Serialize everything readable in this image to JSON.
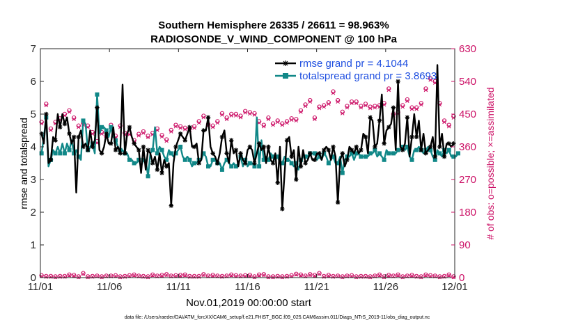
{
  "chart_data": {
    "type": "line",
    "title_line1": "Southern Hemisphere 26335 / 26611 = 98.963%",
    "title_line2": "RADIOSONDE_V_WIND_COMPONENT @ 100 hPa",
    "xlabel": "Nov.01,2019 00:00:00 start",
    "ylabel_left": "rmse and totalspread",
    "ylabel_right": "# of obs: o=possible; ×=assimilated",
    "footer": "data file: /Users/raeder/DAI/ATM_forcXX/CAM6_setup/f.e21.FHIST_BGC.f09_025.CAM6assim.011/Diags_NTrS_2019-11/obs_diag_output.nc",
    "xlim": [
      0,
      30
    ],
    "ylim_left": [
      0,
      7
    ],
    "ylim_right": [
      0,
      630
    ],
    "x_tick_values": [
      0,
      5,
      10,
      15,
      20,
      25,
      30
    ],
    "x_tick_labels": [
      "11/01",
      "11/06",
      "11/11",
      "11/16",
      "11/21",
      "11/26",
      "12/01"
    ],
    "y_left_ticks": [
      "0",
      "1",
      "2",
      "3",
      "4",
      "5",
      "6",
      "7"
    ],
    "y_right_ticks": [
      "0",
      "90",
      "180",
      "270",
      "360",
      "450",
      "540",
      "630"
    ],
    "legend": [
      {
        "name": "rmse grand pr = 4.1044",
        "color": "#000000"
      },
      {
        "name": "totalspread grand pr = 3.8693",
        "color": "#118888"
      }
    ],
    "colors": {
      "rmse": "#000000",
      "spread": "#118888",
      "obs": "#cc1166",
      "legend_text": "#1f4fe0"
    },
    "series": [
      {
        "name": "rmse",
        "values": [
          4.4,
          4.1,
          5.0,
          3.5,
          3.6,
          4.3,
          4.2,
          5.0,
          4.6,
          5.0,
          4.7,
          4.9,
          4.4,
          4.1,
          4.3,
          2.6,
          4.3,
          4.5,
          4.0,
          4.1,
          3.9,
          4.5,
          4.0,
          4.2,
          5.2,
          3.9,
          3.8,
          4.0,
          4.4,
          4.1,
          4.1,
          4.6,
          3.9,
          4.0,
          3.8,
          5.9,
          3.8,
          4.4,
          4.6,
          4.3,
          4.1,
          4.0,
          3.9,
          3.2,
          4.0,
          3.3,
          3.9,
          3.8,
          3.5,
          3.7,
          3.3,
          3.8,
          3.2,
          3.6,
          3.4,
          3.5,
          2.2,
          3.5,
          4.0,
          4.2,
          4.4,
          4.3,
          4.2,
          4.4,
          4.6,
          4.0,
          4.0,
          4.1,
          3.5,
          3.6,
          4.5,
          4.5,
          4.9,
          4.0,
          3.8,
          3.7,
          3.5,
          3.8,
          4.3,
          4.5,
          3.8,
          3.5,
          4.2,
          3.8,
          3.9,
          3.4,
          3.8,
          3.6,
          3.5,
          3.9,
          4.0,
          3.9,
          3.5,
          3.8,
          4.1,
          3.9,
          4.0,
          3.5,
          4.0,
          3.6,
          3.5,
          3.8,
          2.9,
          4.0,
          2.1,
          3.2,
          4.2,
          4.3,
          3.7,
          3.9,
          3.0,
          4.0,
          3.4,
          3.9,
          3.5,
          3.6,
          3.8,
          3.6,
          3.6,
          3.8,
          3.8,
          3.6,
          3.9,
          4.0,
          3.9,
          3.6,
          4.0,
          3.7,
          2.3,
          3.6,
          3.8,
          3.4,
          3.6,
          4.0,
          3.9,
          3.8,
          4.0,
          3.8,
          3.9,
          4.4,
          4.3,
          3.8,
          4.9,
          4.8,
          4.0,
          4.1,
          4.8,
          5.6,
          4.1,
          4.5,
          4.6,
          4.7,
          5.2,
          3.9,
          6.0,
          4.0,
          3.9,
          4.1,
          4.9,
          3.7,
          4.3,
          5.0,
          4.3,
          4.8,
          3.9,
          4.4,
          3.8,
          3.9,
          4.0,
          4.3,
          3.7,
          6.5,
          4.0,
          4.4,
          3.7,
          4.1,
          4.1,
          4.0,
          4.1
        ]
      },
      {
        "name": "totalspread",
        "values": [
          3.8,
          4.3,
          4.9,
          3.4,
          3.6,
          3.9,
          3.8,
          4.0,
          3.8,
          4.1,
          3.8,
          4.1,
          3.9,
          4.2,
          3.8,
          3.9,
          3.7,
          3.6,
          4.8,
          4.7,
          3.9,
          4.0,
          4.1,
          3.8,
          5.6,
          4.4,
          4.6,
          4.6,
          4.5,
          4.3,
          4.6,
          4.3,
          4.2,
          4.0,
          3.9,
          3.9,
          3.8,
          3.8,
          3.6,
          3.6,
          3.5,
          3.5,
          3.6,
          3.4,
          3.6,
          3.6,
          3.1,
          3.8,
          3.9,
          4.6,
          3.8,
          4.0,
          3.9,
          3.7,
          3.6,
          3.9,
          3.8,
          3.7,
          3.8,
          3.9,
          4.0,
          3.7,
          3.6,
          3.7,
          3.6,
          3.4,
          3.5,
          3.5,
          3.6,
          3.6,
          3.8,
          3.7,
          3.4,
          3.4,
          3.6,
          3.6,
          3.5,
          3.5,
          3.3,
          3.5,
          3.6,
          3.5,
          3.4,
          3.5,
          3.4,
          3.5,
          3.7,
          3.4,
          3.6,
          3.4,
          3.5,
          3.5,
          3.4,
          4.9,
          3.4,
          4.2,
          3.6,
          3.7,
          3.6,
          3.8,
          3.7,
          3.6,
          3.7,
          3.5,
          3.5,
          3.7,
          3.6,
          3.6,
          3.5,
          3.4,
          3.5,
          3.3,
          3.6,
          3.7,
          3.7,
          3.7,
          3.8,
          3.8,
          3.8,
          3.6,
          3.7,
          3.6,
          3.8,
          3.7,
          3.5,
          3.6,
          3.7,
          3.5,
          3.5,
          3.7,
          3.2,
          3.6,
          3.7,
          3.7,
          3.8,
          3.6,
          3.8,
          3.8,
          3.7,
          3.7,
          3.7,
          3.7,
          3.8,
          3.8,
          3.9,
          3.7,
          3.8,
          3.7,
          3.6,
          3.9,
          3.8,
          3.8,
          3.8,
          3.8,
          3.9,
          3.9,
          4.0,
          3.9,
          4.0,
          3.7,
          3.6,
          3.9,
          3.9,
          4.0,
          3.9,
          3.8,
          3.9,
          4.0,
          3.9,
          3.7,
          3.6,
          3.9,
          3.8,
          3.7,
          3.9,
          3.8,
          3.9,
          3.7,
          3.7,
          3.7,
          3.8
        ]
      },
      {
        "name": "obs_possible",
        "values": [
          428,
          418,
          478,
          400,
          410,
          418,
          428,
          410,
          438,
          425,
          450,
          430,
          460,
          448,
          440,
          455,
          418,
          430,
          425,
          420,
          418,
          432,
          400,
          380,
          375,
          392,
          400,
          385,
          388,
          400,
          420,
          398,
          390,
          455,
          418,
          392,
          398,
          385,
          398,
          375,
          378,
          382,
          395,
          380,
          402,
          372,
          390,
          402,
          398,
          402,
          410,
          386,
          392,
          388,
          380,
          388,
          406,
          400,
          420,
          410,
          416,
          410,
          412,
          400,
          410,
          422,
          416,
          428,
          430,
          432,
          445,
          418,
          422,
          420,
          418,
          430,
          430,
          440,
          452,
          458,
          440,
          442,
          450,
          446,
          450,
          446,
          445,
          460,
          458,
          462,
          455,
          456,
          452,
          458,
          430,
          400,
          420,
          428,
          440,
          412,
          424,
          416,
          432,
          418,
          424,
          440,
          430,
          422,
          438,
          440,
          436,
          442,
          460,
          470,
          476,
          470,
          488,
          472,
          440,
          462,
          470,
          472,
          474,
          478,
          482,
          520,
          512,
          500,
          488,
          496,
          456,
          460,
          472,
          478,
          484,
          490,
          484,
          478,
          472,
          472,
          478,
          470,
          470,
          470,
          472,
          468,
          474,
          472,
          480,
          460,
          520,
          468,
          450,
          450,
          455,
          462,
          474,
          500,
          490,
          460,
          468,
          476,
          468,
          480,
          480,
          522,
          520,
          540,
          548,
          560,
          540,
          500,
          480,
          458,
          432,
          424,
          420,
          446,
          444,
          420,
          424
        ]
      },
      {
        "name": "obs_assimilated",
        "values": [
          424,
          414,
          474,
          396,
          406,
          414,
          424,
          406,
          434,
          421,
          446,
          426,
          456,
          444,
          436,
          451,
          414,
          426,
          421,
          416,
          414,
          428,
          396,
          376,
          371,
          388,
          396,
          381,
          384,
          396,
          416,
          394,
          386,
          451,
          414,
          388,
          394,
          381,
          394,
          371,
          374,
          378,
          391,
          376,
          398,
          368,
          386,
          398,
          394,
          398,
          406,
          382,
          388,
          384,
          376,
          384,
          402,
          396,
          416,
          406,
          412,
          406,
          408,
          396,
          406,
          418,
          412,
          424,
          426,
          428,
          441,
          414,
          418,
          416,
          414,
          426,
          426,
          436,
          448,
          454,
          436,
          438,
          446,
          442,
          446,
          442,
          441,
          456,
          454,
          458,
          451,
          452,
          448,
          454,
          426,
          396,
          416,
          424,
          436,
          408,
          420,
          412,
          428,
          414,
          420,
          436,
          426,
          418,
          434,
          436,
          432,
          438,
          456,
          466,
          472,
          466,
          484,
          468,
          436,
          458,
          466,
          468,
          470,
          474,
          478,
          516,
          508,
          496,
          484,
          492,
          452,
          456,
          468,
          474,
          480,
          486,
          480,
          474,
          468,
          468,
          474,
          466,
          466,
          466,
          468,
          464,
          470,
          468,
          476,
          456,
          516,
          464,
          446,
          446,
          451,
          458,
          470,
          496,
          486,
          456,
          464,
          472,
          464,
          476,
          476,
          518,
          516,
          536,
          544,
          556,
          536,
          496,
          476,
          454,
          428,
          420,
          416,
          442,
          440,
          416,
          420
        ]
      },
      {
        "name": "obs_bottom_possible",
        "values": [
          6,
          4,
          4,
          8,
          4,
          5,
          3,
          7,
          4,
          10,
          4,
          5,
          8,
          3,
          7,
          5,
          3,
          6,
          12,
          5,
          3,
          6,
          4,
          5,
          5,
          4,
          3,
          8,
          5,
          6,
          5,
          4,
          6,
          7,
          3,
          5,
          4,
          8,
          6,
          3,
          8,
          3,
          5,
          5,
          4,
          6,
          3,
          5,
          8,
          4,
          5,
          4,
          7,
          3,
          9,
          3,
          5,
          4,
          6,
          5,
          7,
          3,
          8,
          5,
          4,
          10,
          4,
          6,
          4,
          3,
          9,
          5,
          5,
          4,
          7,
          3,
          5,
          6,
          4,
          5,
          5,
          6,
          8,
          4,
          6,
          3,
          5,
          4,
          6,
          3,
          7,
          6,
          3,
          5,
          8,
          4,
          9,
          4,
          3,
          5,
          3,
          6,
          4,
          11,
          3,
          5,
          4,
          7,
          6,
          4,
          10,
          4,
          8,
          3,
          5,
          4,
          9,
          3,
          7,
          4,
          12,
          5,
          4,
          6,
          7,
          3,
          4,
          6,
          5,
          8,
          3,
          7,
          5,
          4,
          6,
          9,
          3,
          5,
          4,
          8,
          4,
          5,
          3,
          6,
          5,
          4,
          8,
          6,
          3,
          4,
          7,
          3,
          5,
          4,
          8,
          6,
          3,
          4,
          5,
          5,
          7,
          3,
          4,
          9,
          3,
          7,
          8,
          4,
          6,
          3,
          5,
          9,
          3,
          4,
          4,
          5,
          8,
          4,
          3,
          6,
          4
        ]
      }
    ]
  }
}
